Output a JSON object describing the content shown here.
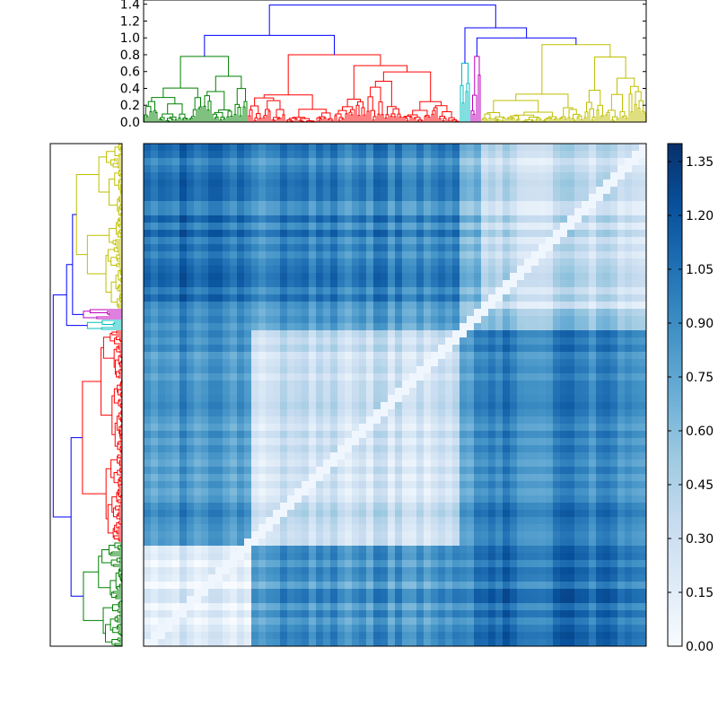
{
  "chart_data": {
    "type": "heatmap",
    "title": "",
    "description_kind": "clustered distance matrix with dendrograms",
    "n_leaves": 280,
    "top_dendrogram": {
      "orientation": "top",
      "yticks": [
        "0.0",
        "0.2",
        "0.4",
        "0.6",
        "0.8",
        "1.0",
        "1.2",
        "1.4"
      ],
      "ytick_values": [
        0.0,
        0.2,
        0.4,
        0.6,
        0.8,
        1.0,
        1.2,
        1.4
      ],
      "ylim": [
        0.0,
        1.45
      ],
      "root_height": 1.39,
      "clusters": [
        {
          "name": "green",
          "color": "#008000",
          "leaf_range": [
            0,
            58
          ],
          "height": 0.78
        },
        {
          "name": "red",
          "color": "#ff0000",
          "leaf_range": [
            58,
            176
          ],
          "height": 0.8
        },
        {
          "name": "cyan",
          "color": "#00bfbf",
          "leaf_range": [
            176,
            182
          ],
          "height": 0.7
        },
        {
          "name": "magenta",
          "color": "#bf00bf",
          "leaf_range": [
            182,
            188
          ],
          "height": 0.78
        },
        {
          "name": "yellow",
          "color": "#bfbf00",
          "leaf_range": [
            188,
            280
          ],
          "height": 0.92
        }
      ],
      "links_color": "#0000ff",
      "links": [
        {
          "left_cluster": "green",
          "right_cluster": "red",
          "height": 1.03
        },
        {
          "left_cluster": "magenta",
          "right_cluster": "yellow",
          "height": 1.0
        },
        {
          "left_cluster": "cyan",
          "right_cluster": "magenta+yellow",
          "height": 1.12
        },
        {
          "left_cluster": "green+red",
          "right_cluster": "cyan+magenta+yellow",
          "height": 1.39
        }
      ]
    },
    "left_dendrogram": {
      "orientation": "left",
      "order_top_to_bottom": [
        "yellow",
        "magenta",
        "cyan",
        "red",
        "green"
      ],
      "clusters": [
        {
          "name": "yellow",
          "color": "#bfbf00",
          "leaf_range": [
            0,
            92
          ],
          "height": 0.92
        },
        {
          "name": "magenta",
          "color": "#bf00bf",
          "leaf_range": [
            92,
            98
          ],
          "height": 0.78
        },
        {
          "name": "cyan",
          "color": "#00bfbf",
          "leaf_range": [
            98,
            104
          ],
          "height": 0.7
        },
        {
          "name": "red",
          "color": "#ff0000",
          "leaf_range": [
            104,
            222
          ],
          "height": 0.8
        },
        {
          "name": "green",
          "color": "#008000",
          "leaf_range": [
            222,
            280
          ],
          "height": 0.78
        }
      ],
      "links_color": "#0000ff",
      "links": [
        {
          "a": "yellow",
          "b": "magenta",
          "height": 1.0
        },
        {
          "a": "yellow+magenta",
          "b": "cyan",
          "height": 1.12
        },
        {
          "a": "red",
          "b": "green",
          "height": 1.03
        },
        {
          "a": "upper",
          "b": "lower",
          "height": 1.39
        }
      ]
    },
    "heatmap": {
      "colormap": "Blues",
      "vmin": 0.0,
      "vmax": 1.4,
      "column_cluster_order": [
        "green",
        "red",
        "cyan",
        "magenta",
        "yellow"
      ],
      "row_cluster_order": [
        "yellow",
        "magenta",
        "cyan",
        "red",
        "green"
      ],
      "mean_block_values": {
        "green-green": 0.15,
        "red-red": 0.3,
        "cyan-cyan": 0.2,
        "magenta-magenta": 0.2,
        "yellow-yellow": 0.35,
        "green-red": 0.85,
        "green-cyan": 0.95,
        "green-magenta": 0.95,
        "green-yellow": 1.05,
        "red-cyan": 0.85,
        "red-magenta": 0.85,
        "red-yellow": 0.95,
        "cyan-magenta": 0.65,
        "cyan-yellow": 0.7,
        "magenta-yellow": 0.6
      },
      "diagonal_value": 0.0
    },
    "colorbar": {
      "ticks": [
        "0.00",
        "0.15",
        "0.30",
        "0.45",
        "0.60",
        "0.75",
        "0.90",
        "1.05",
        "1.20",
        "1.35"
      ],
      "tick_values": [
        0.0,
        0.15,
        0.3,
        0.45,
        0.6,
        0.75,
        0.9,
        1.05,
        1.2,
        1.35
      ],
      "range": [
        0.0,
        1.4
      ]
    }
  }
}
